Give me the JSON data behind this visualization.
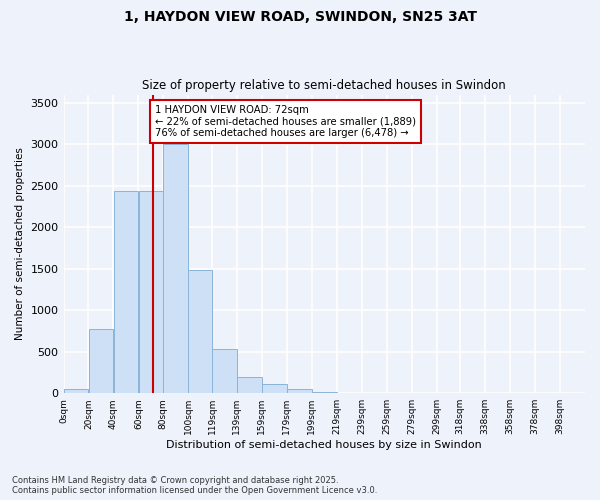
{
  "title_line1": "1, HAYDON VIEW ROAD, SWINDON, SN25 3AT",
  "title_line2": "Size of property relative to semi-detached houses in Swindon",
  "xlabel": "Distribution of semi-detached houses by size in Swindon",
  "ylabel": "Number of semi-detached properties",
  "footer": "Contains HM Land Registry data © Crown copyright and database right 2025.\nContains public sector information licensed under the Open Government Licence v3.0.",
  "bar_color": "#cde0f5",
  "bar_edge_color": "#8ab4d8",
  "annotation_box_color": "#cc0000",
  "vline_color": "#cc0000",
  "subject_size": 72,
  "annotation_text": "1 HAYDON VIEW ROAD: 72sqm\n← 22% of semi-detached houses are smaller (1,889)\n76% of semi-detached houses are larger (6,478) →",
  "categories": [
    "0sqm",
    "20sqm",
    "40sqm",
    "60sqm",
    "80sqm",
    "100sqm",
    "119sqm",
    "139sqm",
    "159sqm",
    "179sqm",
    "199sqm",
    "219sqm",
    "239sqm",
    "259sqm",
    "279sqm",
    "299sqm",
    "318sqm",
    "338sqm",
    "358sqm",
    "378sqm",
    "398sqm"
  ],
  "bin_edges": [
    0,
    20,
    40,
    60,
    80,
    100,
    119,
    139,
    159,
    179,
    199,
    219,
    239,
    259,
    279,
    299,
    318,
    338,
    358,
    378,
    398,
    418
  ],
  "values": [
    55,
    780,
    2440,
    2440,
    3000,
    1490,
    530,
    200,
    105,
    55,
    10,
    3,
    1,
    0,
    0,
    0,
    0,
    0,
    0,
    0,
    0
  ],
  "ylim": [
    0,
    3600
  ],
  "yticks": [
    0,
    500,
    1000,
    1500,
    2000,
    2500,
    3000,
    3500
  ],
  "bg_color": "#eef2fb",
  "plot_bg_color": "#eef2fb",
  "grid_color": "#ffffff"
}
